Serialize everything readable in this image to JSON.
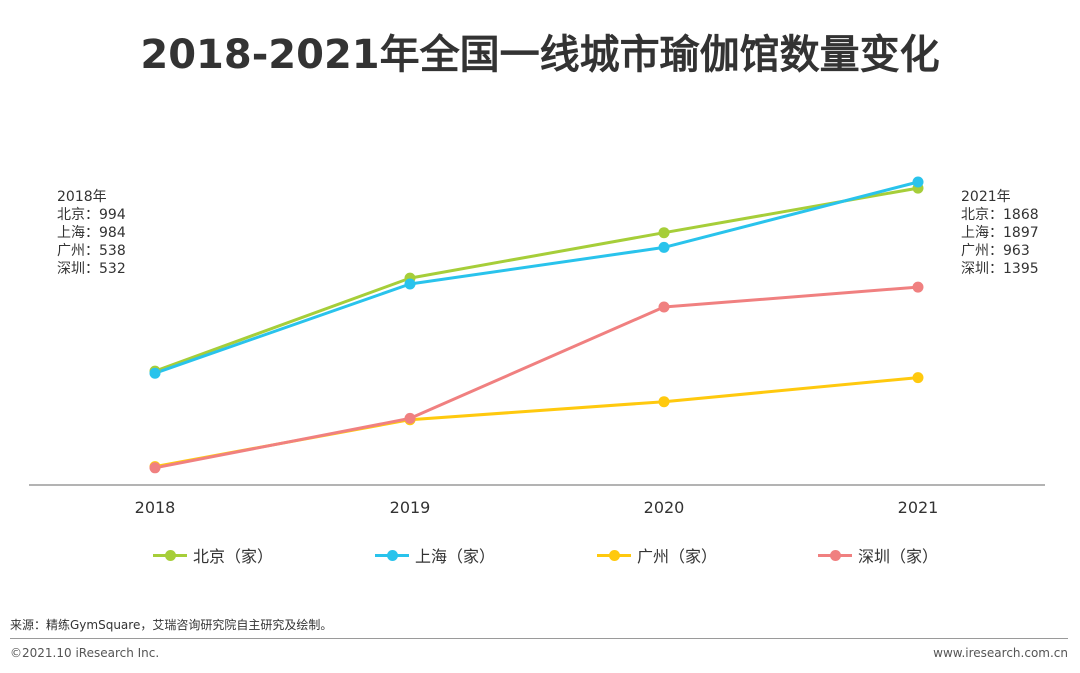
{
  "title": "2018-2021年全国一线城市瑜伽馆数量变化",
  "notes": {
    "left": [
      "2018年",
      "北京：994",
      "上海：984",
      "广州：538",
      "深圳：532"
    ],
    "right": [
      "2021年",
      "北京：1868",
      "上海：1897",
      "广州：963",
      "深圳：1395"
    ]
  },
  "source": "来源：精练GymSquare，艾瑞咨询研究院自主研究及绘制。",
  "copyright": "©2021.10 iResearch Inc.",
  "website": "www.iresearch.com.cn",
  "chart_data": {
    "type": "line",
    "title": "2018-2021年全国一线城市瑜伽馆数量变化",
    "xlabel": "",
    "ylabel": "",
    "x": [
      "2018",
      "2019",
      "2020",
      "2021"
    ],
    "ylim": [
      450,
      2050
    ],
    "grid": false,
    "legend_position": "bottom",
    "series": [
      {
        "name": "北京（家）",
        "color": "#A6CE39",
        "values": [
          994,
          1438,
          1655,
          1868
        ]
      },
      {
        "name": "上海（家）",
        "color": "#29C3EC",
        "values": [
          984,
          1410,
          1585,
          1897
        ]
      },
      {
        "name": "广州（家）",
        "color": "#FFC90E",
        "values": [
          538,
          762,
          848,
          963
        ]
      },
      {
        "name": "深圳（家）",
        "color": "#F08080",
        "values": [
          532,
          768,
          1300,
          1395
        ]
      }
    ]
  }
}
